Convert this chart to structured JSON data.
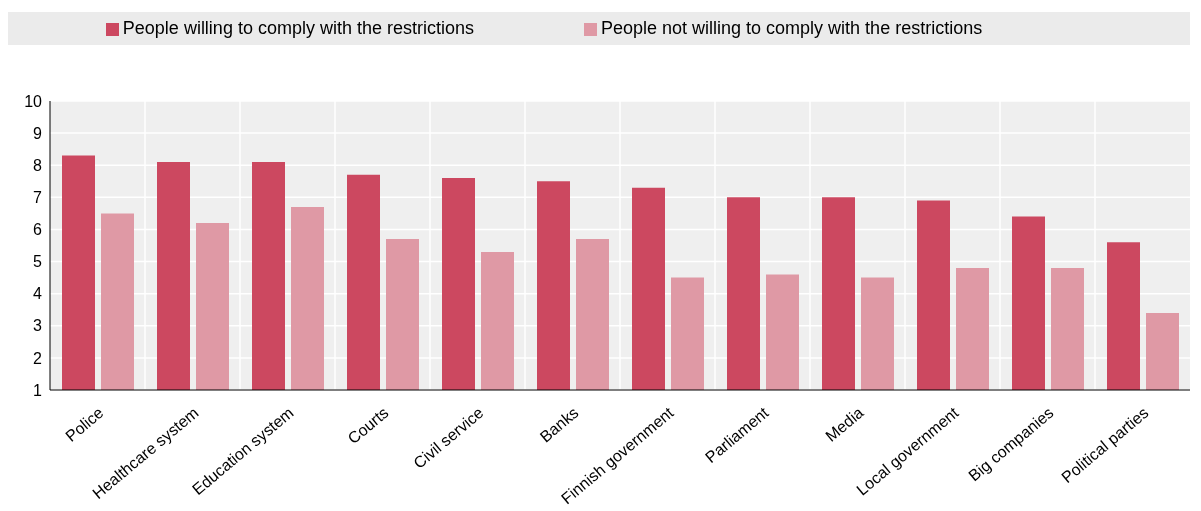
{
  "chart_data": {
    "type": "bar",
    "categories": [
      "Police",
      "Healthcare system",
      "Education system",
      "Courts",
      "Civil service",
      "Banks",
      "Finnish government",
      "Parliament",
      "Media",
      "Local government",
      "Big companies",
      "Political parties"
    ],
    "series": [
      {
        "name": "People willing to comply with the restrictions",
        "color": "#cc4860",
        "values": [
          8.3,
          8.1,
          8.1,
          7.7,
          7.6,
          7.5,
          7.3,
          7.0,
          7.0,
          6.9,
          6.4,
          5.6
        ]
      },
      {
        "name": "People not willing to comply with the restrictions",
        "color": "#df99a5",
        "values": [
          6.5,
          6.2,
          6.7,
          5.7,
          5.3,
          5.7,
          4.5,
          4.6,
          4.5,
          4.8,
          4.8,
          3.4
        ]
      }
    ],
    "ylim": [
      1,
      10
    ],
    "yticks": [
      1,
      2,
      3,
      4,
      5,
      6,
      7,
      8,
      9,
      10
    ],
    "grid": true,
    "legend": "top"
  }
}
